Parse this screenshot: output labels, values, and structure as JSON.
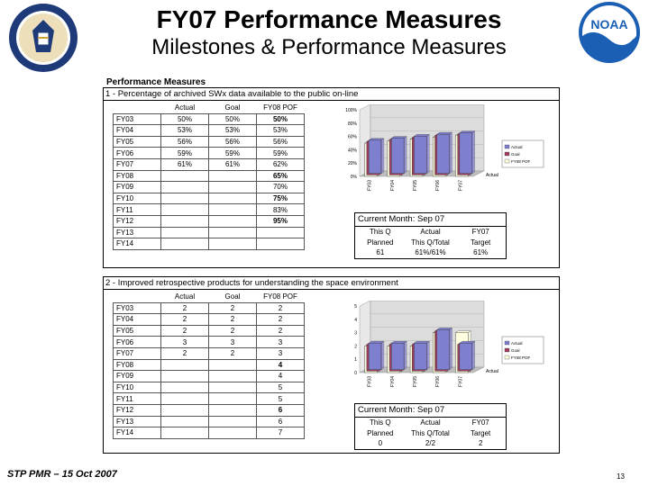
{
  "header": {
    "title": "FY07 Performance Measures",
    "subtitle": "Milestones & Performance Measures"
  },
  "performance_measures_label": "Performance Measures",
  "measure1": {
    "heading": "1 - Percentage of archived SWx data available to the public on-line",
    "columns": [
      "Actual",
      "Goal",
      "FY08 POF"
    ],
    "rows": [
      {
        "year": "FY03",
        "actual": "50%",
        "goal": "50%",
        "pof": "50%",
        "pof_bold": true
      },
      {
        "year": "FY04",
        "actual": "53%",
        "goal": "53%",
        "pof": "53%",
        "pof_bold": false
      },
      {
        "year": "FY05",
        "actual": "56%",
        "goal": "56%",
        "pof": "56%",
        "pof_bold": false
      },
      {
        "year": "FY06",
        "actual": "59%",
        "goal": "59%",
        "pof": "59%",
        "pof_bold": false
      },
      {
        "year": "FY07",
        "actual": "61%",
        "goal": "61%",
        "pof": "62%",
        "pof_bold": false
      },
      {
        "year": "FY08",
        "actual": "",
        "goal": "",
        "pof": "65%",
        "pof_bold": true
      },
      {
        "year": "FY09",
        "actual": "",
        "goal": "",
        "pof": "70%",
        "pof_bold": false
      },
      {
        "year": "FY10",
        "actual": "",
        "goal": "",
        "pof": "75%",
        "pof_bold": true
      },
      {
        "year": "FY11",
        "actual": "",
        "goal": "",
        "pof": "83%",
        "pof_bold": false
      },
      {
        "year": "FY12",
        "actual": "",
        "goal": "",
        "pof": "95%",
        "pof_bold": true
      },
      {
        "year": "FY13",
        "actual": "",
        "goal": "",
        "pof": "",
        "pof_bold": false
      },
      {
        "year": "FY14",
        "actual": "",
        "goal": "",
        "pof": "",
        "pof_bold": false
      }
    ],
    "current_month": {
      "heading": "Current Month: Sep 07",
      "cells": [
        "This Q",
        "Actual",
        "FY07",
        "Planned",
        "This Q/Total",
        "Target",
        "61",
        "61%/61%",
        "61%"
      ]
    }
  },
  "measure2": {
    "heading": "2 - Improved retrospective products for understanding the space environment",
    "columns": [
      "Actual",
      "Goal",
      "FY08 POF"
    ],
    "rows": [
      {
        "year": "FY03",
        "actual": "2",
        "goal": "2",
        "pof": "2",
        "pof_bold": false
      },
      {
        "year": "FY04",
        "actual": "2",
        "goal": "2",
        "pof": "2",
        "pof_bold": false
      },
      {
        "year": "FY05",
        "actual": "2",
        "goal": "2",
        "pof": "2",
        "pof_bold": false
      },
      {
        "year": "FY06",
        "actual": "3",
        "goal": "3",
        "pof": "3",
        "pof_bold": false
      },
      {
        "year": "FY07",
        "actual": "2",
        "goal": "2",
        "pof": "3",
        "pof_bold": false
      },
      {
        "year": "FY08",
        "actual": "",
        "goal": "",
        "pof": "4",
        "pof_bold": true
      },
      {
        "year": "FY09",
        "actual": "",
        "goal": "",
        "pof": "4",
        "pof_bold": false
      },
      {
        "year": "FY10",
        "actual": "",
        "goal": "",
        "pof": "5",
        "pof_bold": false
      },
      {
        "year": "FY11",
        "actual": "",
        "goal": "",
        "pof": "5",
        "pof_bold": false
      },
      {
        "year": "FY12",
        "actual": "",
        "goal": "",
        "pof": "6",
        "pof_bold": true
      },
      {
        "year": "FY13",
        "actual": "",
        "goal": "",
        "pof": "6",
        "pof_bold": false
      },
      {
        "year": "FY14",
        "actual": "",
        "goal": "",
        "pof": "7",
        "pof_bold": false
      }
    ],
    "current_month": {
      "heading": "Current Month: Sep 07",
      "cells": [
        "This Q",
        "Actual",
        "FY07",
        "Planned",
        "This Q/Total",
        "Target",
        "0",
        "2/2",
        "2"
      ]
    }
  },
  "chart_data": [
    {
      "type": "bar",
      "categories": [
        "FY03",
        "FY04",
        "FY05",
        "FY06",
        "FY07"
      ],
      "series": [
        {
          "name": "Actual",
          "values": [
            50,
            53,
            56,
            59,
            61
          ],
          "color": "#7f7fcf"
        },
        {
          "name": "Goal",
          "values": [
            50,
            53,
            56,
            59,
            61
          ],
          "color": "#9f3f5f"
        },
        {
          "name": "FY08 POF",
          "values": [
            50,
            53,
            56,
            59,
            62
          ],
          "color": "#ffffe0"
        }
      ],
      "ytick_labels": [
        "0%",
        "20%",
        "40%",
        "60%",
        "80%",
        "100%"
      ],
      "ylim": [
        0,
        100
      ],
      "depth_label": "Actual"
    },
    {
      "type": "bar",
      "categories": [
        "FY03",
        "FY04",
        "FY05",
        "FY06",
        "FY07"
      ],
      "series": [
        {
          "name": "Actual",
          "values": [
            2,
            2,
            2,
            3,
            2
          ],
          "color": "#7f7fcf"
        },
        {
          "name": "Goal",
          "values": [
            2,
            2,
            2,
            3,
            2
          ],
          "color": "#9f3f5f"
        },
        {
          "name": "FY08 POF",
          "values": [
            2,
            2,
            2,
            3,
            3
          ],
          "color": "#ffffe0"
        }
      ],
      "ytick_labels": [
        "0",
        "1",
        "2",
        "3",
        "4",
        "5"
      ],
      "ylim": [
        0,
        5
      ],
      "depth_label": "Actual"
    }
  ],
  "footer": {
    "left": "STP PMR – 15 Oct 2007",
    "page": "13"
  },
  "colors": {
    "navy": "#1f3a78",
    "seal_gold": "#c9a23a",
    "noaa_blue": "#1a5fb4"
  }
}
